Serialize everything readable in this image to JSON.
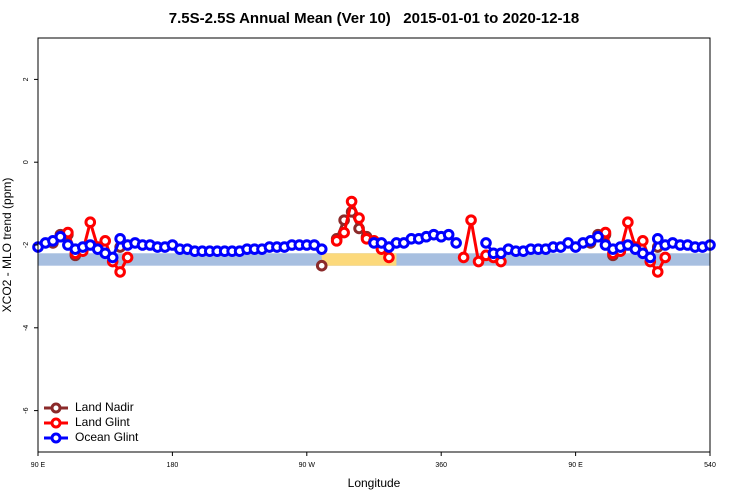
{
  "chart_data": {
    "type": "scatter",
    "title": "7.5S-2.5S Annual Mean (Ver 10)   2015-01-01 to 2020-12-18",
    "x_label": "Longitude",
    "y_label": "XCO2 - MLO trend (ppm)",
    "xlim": [
      90,
      540
    ],
    "ylim": [
      -7,
      3
    ],
    "xticks": [
      {
        "value": 90,
        "label": "90 E"
      },
      180,
      {
        "value": 270,
        "label": "90 W"
      },
      360,
      {
        "value": 450,
        "label": "90 E"
      },
      540
    ],
    "yticks": [
      -6,
      -4,
      -2,
      0,
      2
    ],
    "legend": "bottom-left",
    "band": {
      "lower": -2.5,
      "upper": -2.2,
      "color": "#a7bfe0"
    },
    "shaded_regions": [
      {
        "x": [
          280,
          330
        ],
        "color": "#fcd97b"
      }
    ],
    "series": [
      {
        "name": "Land Nadir",
        "color": "#8b2a2a",
        "x": [
          100,
          105,
          110,
          115,
          145,
          280,
          290,
          295,
          300,
          305,
          310,
          460,
          465,
          470,
          475,
          505
        ],
        "values": [
          -1.95,
          -1.75,
          -1.75,
          -2.25,
          -2.05,
          -2.5,
          -1.85,
          -1.4,
          -1.2,
          -1.6,
          -1.8,
          -1.95,
          -1.75,
          -1.75,
          -2.25,
          -2.05
        ]
      },
      {
        "name": "Land Glint",
        "color": "#ff0000",
        "x": [
          105,
          110,
          115,
          120,
          125,
          130,
          135,
          140,
          145,
          150,
          290,
          295,
          300,
          305,
          310,
          315,
          320,
          325,
          375,
          380,
          385,
          390,
          395,
          400,
          465,
          470,
          475,
          480,
          485,
          490,
          495,
          500,
          505,
          510
        ],
        "values": [
          -1.8,
          -1.7,
          -2.2,
          -2.15,
          -1.45,
          -2.05,
          -1.9,
          -2.4,
          -2.65,
          -2.3,
          -1.9,
          -1.7,
          -0.95,
          -1.35,
          -1.85,
          -1.9,
          -2.1,
          -2.3,
          -2.3,
          -1.4,
          -2.4,
          -2.25,
          -2.3,
          -2.4,
          -1.8,
          -1.7,
          -2.2,
          -2.15,
          -1.45,
          -2.05,
          -1.9,
          -2.4,
          -2.65,
          -2.3
        ]
      },
      {
        "name": "Ocean Glint",
        "color": "#0000ff",
        "x": [
          90,
          95,
          100,
          105,
          110,
          115,
          120,
          125,
          130,
          135,
          140,
          145,
          150,
          155,
          160,
          165,
          170,
          175,
          180,
          185,
          190,
          195,
          200,
          205,
          210,
          215,
          220,
          225,
          230,
          235,
          240,
          245,
          250,
          255,
          260,
          265,
          270,
          275,
          280,
          315,
          320,
          325,
          330,
          335,
          340,
          345,
          350,
          355,
          360,
          365,
          370,
          390,
          395,
          400,
          405,
          410,
          415,
          420,
          425,
          430,
          435,
          440,
          445,
          450,
          455,
          460,
          465,
          470,
          475,
          480,
          485,
          490,
          495,
          500,
          505,
          510,
          515,
          520,
          525,
          530,
          535,
          540
        ],
        "values": [
          -2.05,
          -1.95,
          -1.9,
          -1.8,
          -2.0,
          -2.1,
          -2.05,
          -2.0,
          -2.1,
          -2.2,
          -2.3,
          -1.85,
          -2.0,
          -1.95,
          -2.0,
          -2.0,
          -2.05,
          -2.05,
          -2.0,
          -2.1,
          -2.1,
          -2.15,
          -2.15,
          -2.15,
          -2.15,
          -2.15,
          -2.15,
          -2.15,
          -2.1,
          -2.1,
          -2.1,
          -2.05,
          -2.05,
          -2.05,
          -2.0,
          -2.0,
          -2.0,
          -2.0,
          -2.1,
          -1.95,
          -1.95,
          -2.05,
          -1.95,
          -1.95,
          -1.85,
          -1.85,
          -1.8,
          -1.75,
          -1.8,
          -1.75,
          -1.95,
          -1.95,
          -2.2,
          -2.2,
          -2.1,
          -2.15,
          -2.15,
          -2.1,
          -2.1,
          -2.1,
          -2.05,
          -2.05,
          -1.95,
          -2.05,
          -1.95,
          -1.9,
          -1.8,
          -2.0,
          -2.1,
          -2.05,
          -2.0,
          -2.1,
          -2.2,
          -2.3,
          -1.85,
          -2.0,
          -1.95,
          -2.0,
          -2.0,
          -2.05,
          -2.05,
          -2.0
        ]
      }
    ]
  }
}
